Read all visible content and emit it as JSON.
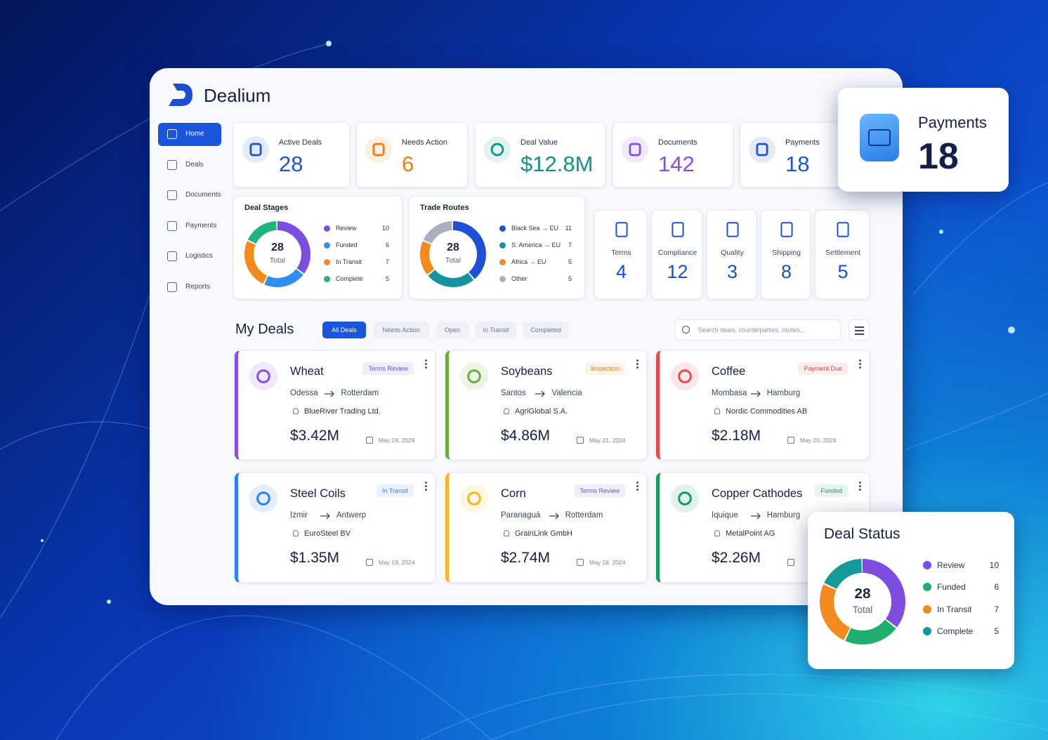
{
  "brand": "Dealium",
  "nav": [
    "Home",
    "Deals",
    "Documents",
    "Payments",
    "Logistics",
    "Reports"
  ],
  "stats": [
    {
      "label": "Active Deals",
      "value": 28,
      "color": "#1e56d6"
    },
    {
      "label": "Needs Action",
      "value": 6,
      "color": "#f07d12"
    },
    {
      "label": "Deal Value",
      "value": "$12.8M",
      "color": "#0e9488"
    },
    {
      "label": "Documents",
      "value": 142,
      "color": "#8b4fe0"
    },
    {
      "label": "Payments",
      "value": 18,
      "color": "#1e56d6"
    }
  ],
  "deal_stages": {
    "title": "Deal Stages",
    "total": 28,
    "total_label": "Total",
    "items": [
      {
        "name": "Review",
        "value": 10,
        "color": "#7c4ddf"
      },
      {
        "name": "Funded",
        "value": 6,
        "color": "#2f8ff0"
      },
      {
        "name": "In Transit",
        "value": 7,
        "color": "#f28a1e"
      },
      {
        "name": "Complete",
        "value": 5,
        "color": "#1fb47a"
      }
    ]
  },
  "trade_routes": {
    "title": "Trade Routes",
    "total": 28,
    "total_label": "Total",
    "items": [
      {
        "name": "Black Sea → EU",
        "value": 11,
        "color": "#1d4fd8"
      },
      {
        "name": "S. America → EU",
        "value": 7,
        "color": "#1593a0"
      },
      {
        "name": "Africa → EU",
        "value": 5,
        "color": "#f28a1e"
      },
      {
        "name": "Other",
        "value": 5,
        "color": "#a8b0bf"
      }
    ]
  },
  "categories": [
    {
      "label": "Terms",
      "value": 4
    },
    {
      "label": "Compliance",
      "value": 12
    },
    {
      "label": "Quality",
      "value": 3
    },
    {
      "label": "Shipping",
      "value": 8
    },
    {
      "label": "Settlement",
      "value": 5
    }
  ],
  "my_deals": {
    "title": "My Deals",
    "filters": [
      "All Deals",
      "Needs Action",
      "Open",
      "In Transit",
      "Completed"
    ],
    "search_placeholder": "Search deals, counterparties, routes..."
  },
  "deals": [
    {
      "name": "Wheat",
      "status": "Terms Review",
      "status_color": "#6b4fe0",
      "origin": "Odessa",
      "destination": "Rotterdam",
      "counterparty": "BlueRiver Trading Ltd.",
      "value": "$3.42M",
      "date": "May 24, 2024",
      "color": "#8b4fe0"
    },
    {
      "name": "Soybeans",
      "status": "Inspection",
      "status_color": "#f07d12",
      "origin": "Santos",
      "destination": "Valencia",
      "counterparty": "AgriGlobal S.A.",
      "value": "$4.86M",
      "date": "May 21, 2024",
      "color": "#6aac3a"
    },
    {
      "name": "Coffee",
      "status": "Payment Due",
      "status_color": "#e04848",
      "origin": "Mombasa",
      "destination": "Hamburg",
      "counterparty": "Nordic Commodities AB",
      "value": "$2.18M",
      "date": "May 20, 2024",
      "color": "#e84a4a"
    },
    {
      "name": "Steel Coils",
      "status": "In Transit",
      "status_color": "#2f7ff0",
      "origin": "Izmir",
      "destination": "Antwerp",
      "counterparty": "EuroSteel BV",
      "value": "$1.35M",
      "date": "May 19, 2024",
      "color": "#2f7ff0"
    },
    {
      "name": "Corn",
      "status": "Terms Review",
      "status_color": "#6b4fe0",
      "origin": "Paranaguá",
      "destination": "Rotterdam",
      "counterparty": "GrainLink GmbH",
      "value": "$2.74M",
      "date": "May 18, 2024",
      "color": "#f5b820"
    },
    {
      "name": "Copper Cathodes",
      "status": "Funded",
      "status_color": "#1a9a5a",
      "origin": "Iquique",
      "destination": "Hamburg",
      "counterparty": "MetalPoint AG",
      "value": "$2.26M",
      "color": "#1a9a5a"
    }
  ],
  "payments_card": {
    "label": "Payments",
    "value": 18
  },
  "deal_status": {
    "title": "Deal Status",
    "total": 28,
    "total_label": "Total",
    "items": [
      {
        "name": "Review",
        "value": 10,
        "color": "#7c4ddf"
      },
      {
        "name": "Funded",
        "value": 6,
        "color": "#1fae6e"
      },
      {
        "name": "In Transit",
        "value": 7,
        "color": "#f28a1e"
      },
      {
        "name": "Complete",
        "value": 5,
        "color": "#15999a"
      }
    ]
  }
}
